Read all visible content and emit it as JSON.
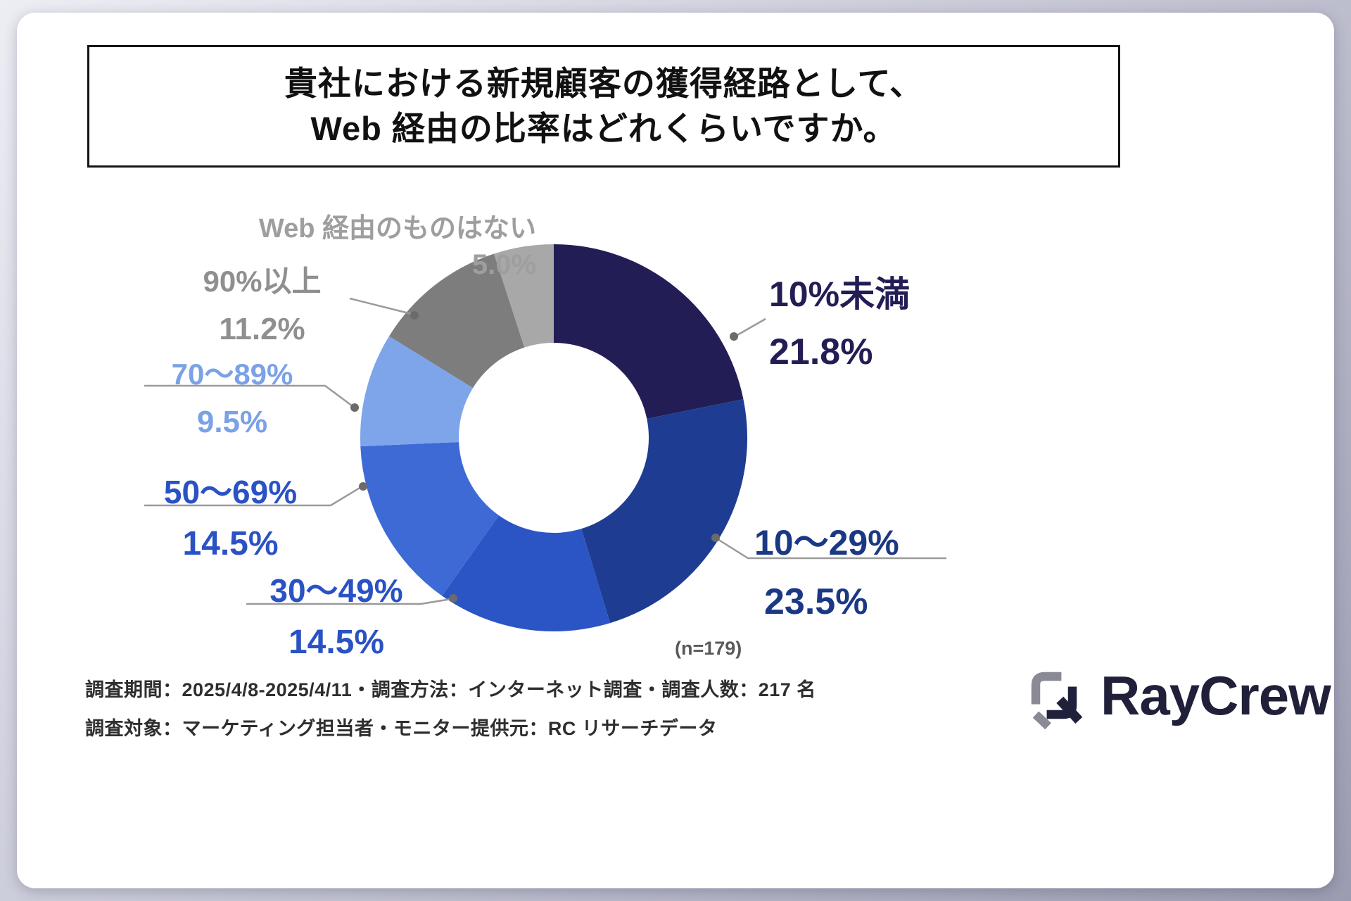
{
  "title": {
    "line1": "貴社における新規顧客の獲得経路として、",
    "line2": "Web 経由の比率はどれくらいですか。"
  },
  "chart_data": {
    "type": "pie",
    "title": "貴社における新規顧客の獲得経路として、Web 経由の比率はどれくらいですか。",
    "n_label": "(n=179)",
    "start_angle": "12時方向から時計回り",
    "donut": true,
    "segments": [
      {
        "label": "10%未満",
        "value": 21.8,
        "value_label": "21.8%",
        "color": "#221E55",
        "label_color": "#221E55"
      },
      {
        "label": "10〜29%",
        "value": 23.5,
        "value_label": "23.5%",
        "color": "#1E3D92",
        "label_color": "#1B3884"
      },
      {
        "label": "30〜49%",
        "value": 14.5,
        "value_label": "14.5%",
        "color": "#2B55C4",
        "label_color": "#2A52C4"
      },
      {
        "label": "50〜69%",
        "value": 14.5,
        "value_label": "14.5%",
        "color": "#3E6AD5",
        "label_color": "#2A52C4"
      },
      {
        "label": "70〜89%",
        "value": 9.5,
        "value_label": "9.5%",
        "color": "#7EA4EA",
        "label_color": "#7BA1E6"
      },
      {
        "label": "90%以上",
        "value": 11.2,
        "value_label": "11.2%",
        "color": "#7D7D7D",
        "label_color": "#8F8F8F"
      },
      {
        "label": "Web 経由のものはない",
        "value": 5.0,
        "value_label": "5.0%",
        "color": "#A8A8A8",
        "label_color": "#9E9E9E"
      }
    ]
  },
  "footer": {
    "line1": "調査期間：2025/4/8-2025/4/11・調査方法：インターネット調査・調査人数：217 名",
    "line2": "調査対象：マーケティング担当者・モニター提供元：RC リサーチデータ"
  },
  "logo": {
    "text": "RayCrew"
  }
}
